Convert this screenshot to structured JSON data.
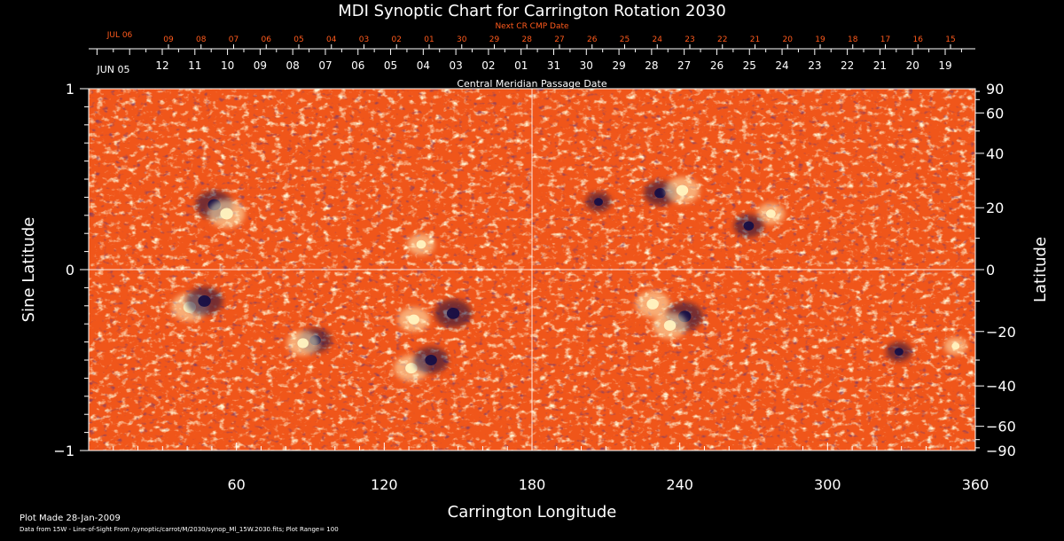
{
  "chart_data": {
    "type": "heatmap",
    "title": "MDI Synoptic Chart for Carrington Rotation 2030",
    "xlabel": "Carrington Longitude",
    "ylabel_left": "Sine Latitude",
    "ylabel_right": "Latitude",
    "x_ticks": [
      "60",
      "120",
      "180",
      "240",
      "300",
      "360"
    ],
    "x_tick_values": [
      60,
      120,
      180,
      240,
      300,
      360
    ],
    "xlim": [
      0,
      360
    ],
    "ylim": [
      -1,
      1
    ],
    "y_left_ticks": [
      "1",
      "0",
      "−1"
    ],
    "y_left_tick_values": [
      1,
      0,
      -1
    ],
    "y_right_ticks": [
      "90",
      "60",
      "40",
      "20",
      "0",
      "−20",
      "−40",
      "−60",
      "−90"
    ],
    "y_right_tick_values": [
      90,
      60,
      40,
      20,
      0,
      -20,
      -40,
      -60,
      -90
    ],
    "center_lines": {
      "longitude": 180,
      "sine_latitude": 0
    },
    "cmp_axis_label": "Central Meridian Passage Date",
    "cmp_start_label": "JUN 05",
    "cmp_dates": [
      "12",
      "11",
      "10",
      "09",
      "08",
      "07",
      "06",
      "05",
      "04",
      "03",
      "02",
      "01",
      "31",
      "30",
      "29",
      "28",
      "27",
      "26",
      "25",
      "24",
      "23",
      "22",
      "21",
      "20",
      "19"
    ],
    "next_cr_label": "Next CR CMP Date",
    "next_cr_start_label": "JUL 06",
    "next_cr_dates": [
      "09",
      "08",
      "07",
      "06",
      "05",
      "04",
      "03",
      "02",
      "01",
      "30",
      "29",
      "28",
      "27",
      "26",
      "25",
      "24",
      "23",
      "22",
      "21",
      "20",
      "19",
      "18",
      "17",
      "16",
      "15"
    ],
    "plot_range": 100,
    "colors": {
      "background": "#000000",
      "field_base": "#f0561a",
      "positive_polarity": "#fff3c0",
      "negative_polarity": "#170f45",
      "next_cr_text": "#ff5a1c",
      "axes": "#ffffff"
    },
    "magnetic_features": [
      {
        "polarity": "negative",
        "longitude": 51,
        "latitude": 21,
        "strength": 1.0
      },
      {
        "polarity": "positive",
        "longitude": 56,
        "latitude": 18,
        "strength": 1.0
      },
      {
        "polarity": "positive",
        "longitude": 41,
        "latitude": -12,
        "strength": 1.0
      },
      {
        "polarity": "negative",
        "longitude": 47,
        "latitude": -10,
        "strength": 1.0
      },
      {
        "polarity": "negative",
        "longitude": 92,
        "latitude": -23,
        "strength": 0.8
      },
      {
        "polarity": "positive",
        "longitude": 87,
        "latitude": -24,
        "strength": 0.8
      },
      {
        "polarity": "positive",
        "longitude": 135,
        "latitude": 8,
        "strength": 0.6
      },
      {
        "polarity": "positive",
        "longitude": 132,
        "latitude": -16,
        "strength": 0.8
      },
      {
        "polarity": "negative",
        "longitude": 148,
        "latitude": -14,
        "strength": 1.0
      },
      {
        "polarity": "positive",
        "longitude": 131,
        "latitude": -33,
        "strength": 0.9
      },
      {
        "polarity": "negative",
        "longitude": 139,
        "latitude": -30,
        "strength": 0.9
      },
      {
        "polarity": "negative",
        "longitude": 207,
        "latitude": 22,
        "strength": 0.5
      },
      {
        "polarity": "negative",
        "longitude": 232,
        "latitude": 25,
        "strength": 0.8
      },
      {
        "polarity": "positive",
        "longitude": 241,
        "latitude": 26,
        "strength": 0.9
      },
      {
        "polarity": "positive",
        "longitude": 277,
        "latitude": 18,
        "strength": 0.6
      },
      {
        "polarity": "negative",
        "longitude": 268,
        "latitude": 14,
        "strength": 0.7
      },
      {
        "polarity": "positive",
        "longitude": 229,
        "latitude": -11,
        "strength": 0.9
      },
      {
        "polarity": "negative",
        "longitude": 242,
        "latitude": -15,
        "strength": 1.0
      },
      {
        "polarity": "positive",
        "longitude": 236,
        "latitude": -18,
        "strength": 0.9
      },
      {
        "polarity": "negative",
        "longitude": 329,
        "latitude": -27,
        "strength": 0.5
      },
      {
        "polarity": "positive",
        "longitude": 352,
        "latitude": -25,
        "strength": 0.4
      }
    ]
  },
  "footer": {
    "plot_made": "Plot Made 28-Jan-2009",
    "data_source": "Data from 15W - Line-of-Sight From /synoptic/carrot/M/2030/synop_Ml_15W.2030.fits; Plot Range=  100"
  }
}
